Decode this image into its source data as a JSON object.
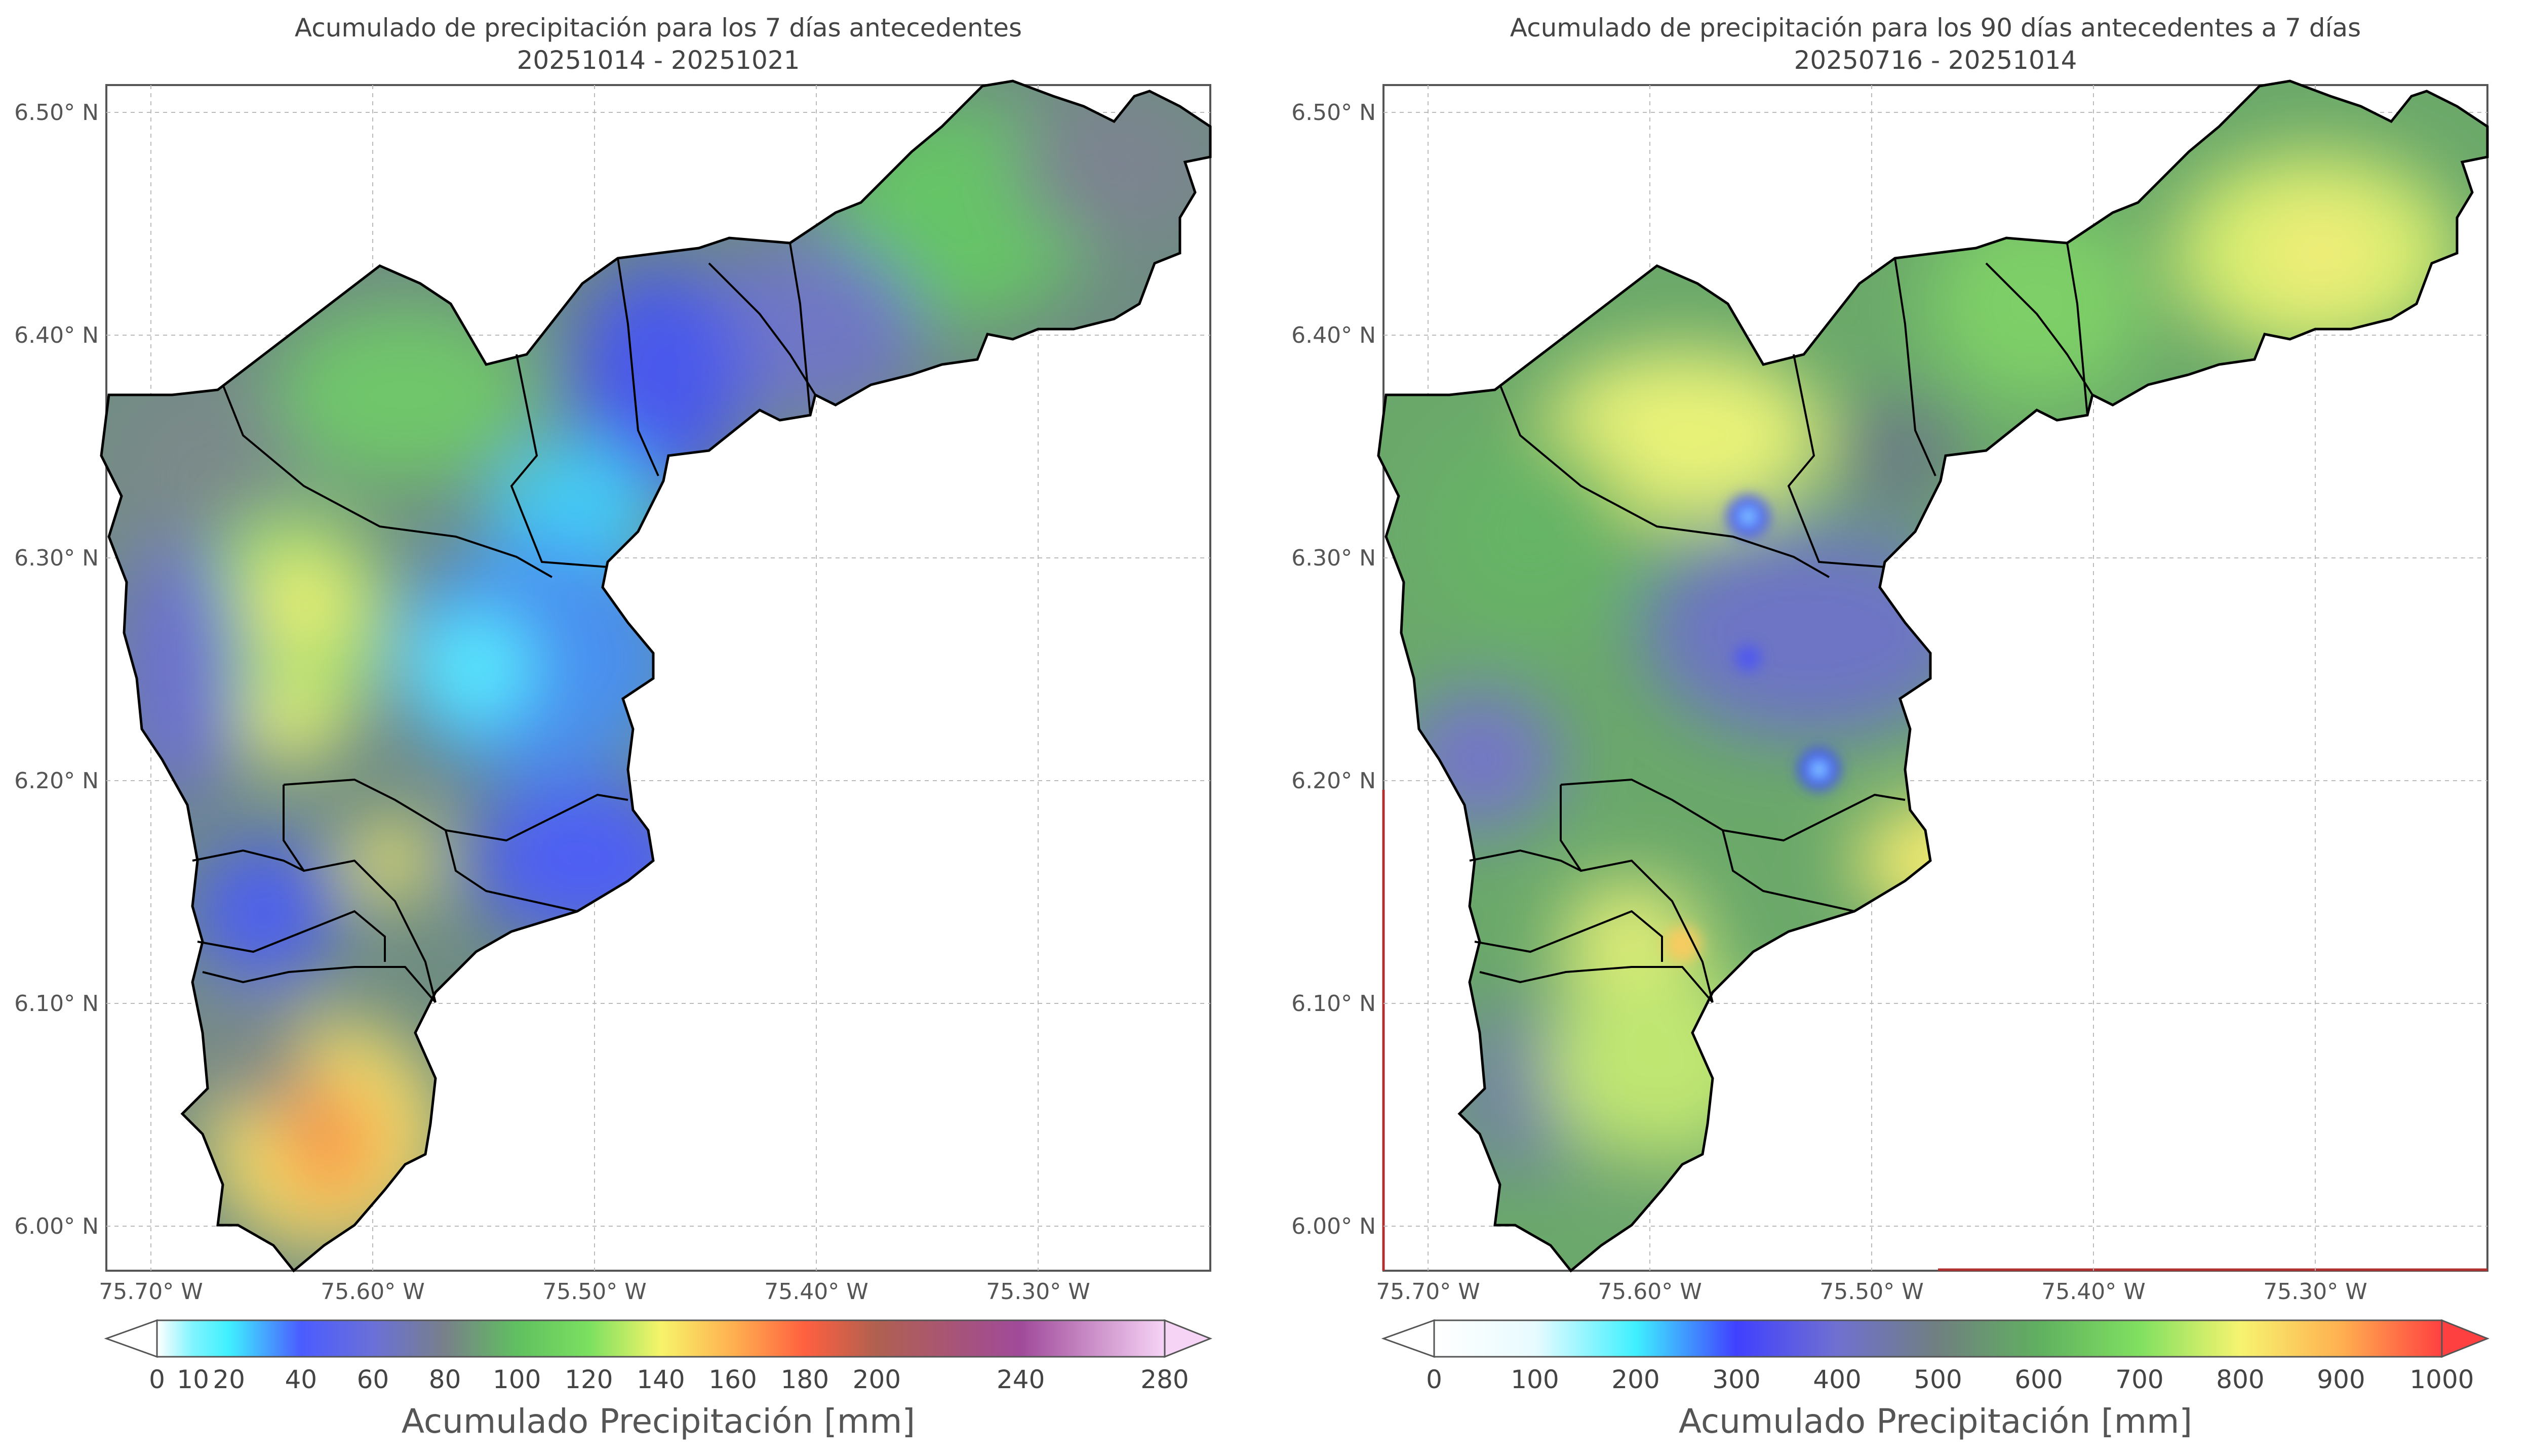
{
  "left_map": {
    "title_line1": "Acumulado de precipitación para los 7 días antecedentes",
    "title_line2": "20251014 - 20251021",
    "lat_ticks": [
      "6.50° N",
      "6.40° N",
      "6.30° N",
      "6.20° N",
      "6.10° N",
      "6.00° N"
    ],
    "lon_ticks": [
      "75.70° W",
      "75.60° W",
      "75.50° W",
      "75.40° W",
      "75.30° W"
    ],
    "colorbar": {
      "label": "Acumulado Precipitación [mm]",
      "ticks": [
        "0",
        "10",
        "20",
        "40",
        "60",
        "80",
        "100",
        "120",
        "140",
        "160",
        "180",
        "200",
        "240",
        "280"
      ],
      "tick_values": [
        0,
        10,
        20,
        40,
        60,
        80,
        100,
        120,
        140,
        160,
        180,
        200,
        240,
        280
      ],
      "colors": [
        "#ffffff",
        "#7ff4ff",
        "#3ff0ff",
        "#4b5cff",
        "#6a70d8",
        "#78808a",
        "#60c060",
        "#7be060",
        "#f6f46a",
        "#ffb050",
        "#ff6040",
        "#b06050",
        "#a04a9a",
        "#f6d4f6"
      ]
    }
  },
  "right_map": {
    "title_line1": "Acumulado de precipitación para los 90 días antecedentes a 7 días",
    "title_line2": "20250716 - 20251014",
    "lat_ticks": [
      "6.50° N",
      "6.40° N",
      "6.30° N",
      "6.20° N",
      "6.10° N",
      "6.00° N"
    ],
    "lon_ticks": [
      "75.70° W",
      "75.60° W",
      "75.50° W",
      "75.40° W",
      "75.30° W"
    ],
    "colorbar": {
      "label": "Acumulado Precipitación [mm]",
      "ticks": [
        "0",
        "100",
        "200",
        "300",
        "400",
        "500",
        "600",
        "700",
        "800",
        "900",
        "1000"
      ],
      "tick_values": [
        0,
        100,
        200,
        300,
        400,
        500,
        600,
        700,
        800,
        900,
        1000
      ],
      "colors": [
        "#ffffff",
        "#e8fbff",
        "#3ff0ff",
        "#4040ff",
        "#7070d0",
        "#708080",
        "#60b060",
        "#80e060",
        "#f6f470",
        "#ffb050",
        "#ff4040"
      ]
    }
  }
}
